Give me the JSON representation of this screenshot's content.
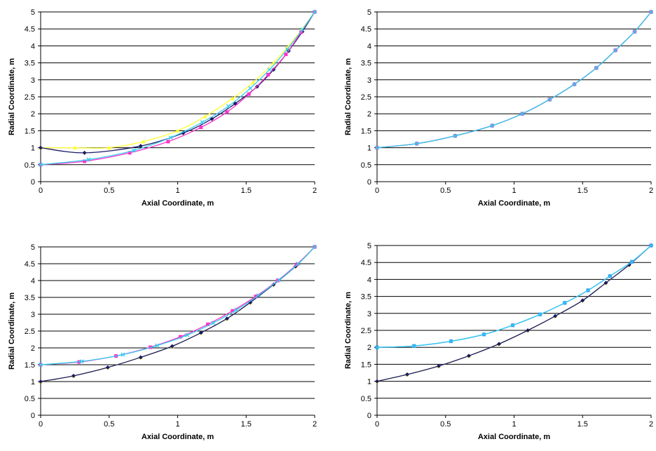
{
  "chart_data": [
    {
      "type": "scatter",
      "xlabel": "Axial Coordinate, m",
      "ylabel": "Radial Coordinate, m",
      "xlim": [
        0,
        2
      ],
      "ylim": [
        0,
        5
      ],
      "xticks": [
        "0",
        "0.5",
        "1",
        "1.5",
        "2"
      ],
      "yticks": [
        "0",
        "0.5",
        "1",
        "1.5",
        "2",
        "2.5",
        "3",
        "3.5",
        "4",
        "4.5",
        "5"
      ],
      "grid": "horizontal",
      "series": [
        {
          "color": "#ffff33",
          "marker": "triangle",
          "x": [
            0,
            0.25,
            0.5,
            0.75,
            1.0,
            1.2,
            1.4,
            1.55,
            1.7,
            1.8,
            1.9,
            2.0
          ],
          "y": [
            1.0,
            1.0,
            1.0,
            1.18,
            1.5,
            1.92,
            2.45,
            2.92,
            3.5,
            3.95,
            4.45,
            5.0
          ]
        },
        {
          "color": "#1a1a66",
          "marker": "diamond",
          "x": [
            0,
            0.32,
            0.73,
            1.04,
            1.25,
            1.42,
            1.58,
            1.7,
            1.81,
            1.91,
            2.0
          ],
          "y": [
            1.0,
            0.85,
            1.05,
            1.43,
            1.85,
            2.3,
            2.8,
            3.3,
            3.85,
            4.42,
            5.0
          ]
        },
        {
          "color": "#ff33cc",
          "marker": "square",
          "x": [
            0,
            0.32,
            0.65,
            0.93,
            1.17,
            1.36,
            1.52,
            1.66,
            1.79,
            1.9,
            2.0
          ],
          "y": [
            0.5,
            0.6,
            0.85,
            1.18,
            1.6,
            2.05,
            2.58,
            3.15,
            3.75,
            4.4,
            5.0
          ]
        },
        {
          "color": "#33ccee",
          "marker": "x",
          "x": [
            0,
            0.35,
            0.68,
            0.95,
            1.18,
            1.37,
            1.53,
            1.67,
            1.8,
            1.91,
            2.0
          ],
          "y": [
            0.5,
            0.65,
            0.92,
            1.3,
            1.75,
            2.22,
            2.75,
            3.3,
            3.9,
            4.48,
            5.0
          ]
        }
      ]
    },
    {
      "type": "scatter",
      "xlabel": "Axial Coordinate, m",
      "ylabel": "Radial Coordinate, m",
      "xlim": [
        0,
        2
      ],
      "ylim": [
        0,
        5
      ],
      "xticks": [
        "0",
        "0.5",
        "1",
        "1.5",
        "2"
      ],
      "yticks": [
        "0",
        "0.5",
        "1",
        "1.5",
        "2",
        "2.5",
        "3",
        "3.5",
        "4",
        "4.5",
        "5"
      ],
      "grid": "horizontal",
      "series": [
        {
          "color": "#1a1a66",
          "marker": "diamond",
          "x": [
            0,
            0.29,
            0.57,
            0.84,
            1.06,
            1.26,
            1.44,
            1.6,
            1.74,
            1.88,
            2.0
          ],
          "y": [
            1.0,
            1.12,
            1.35,
            1.65,
            2.0,
            2.42,
            2.87,
            3.35,
            3.87,
            4.42,
            5.0
          ]
        },
        {
          "color": "#ff33cc",
          "marker": "square",
          "x": [
            0,
            0.29,
            0.57,
            0.84,
            1.06,
            1.26,
            1.44,
            1.6,
            1.74,
            1.88,
            2.0
          ],
          "y": [
            1.0,
            1.12,
            1.35,
            1.65,
            2.0,
            2.42,
            2.87,
            3.35,
            3.87,
            4.42,
            5.0
          ]
        },
        {
          "color": "#33ccee",
          "marker": "x",
          "x": [
            0,
            0.29,
            0.57,
            0.84,
            1.06,
            1.26,
            1.44,
            1.6,
            1.74,
            1.88,
            2.0
          ],
          "y": [
            1.0,
            1.12,
            1.35,
            1.65,
            2.0,
            2.42,
            2.87,
            3.35,
            3.87,
            4.42,
            5.0
          ]
        }
      ]
    },
    {
      "type": "scatter",
      "xlabel": "Axial Coordinate, m",
      "ylabel": "Radial Coordinate, m",
      "xlim": [
        0,
        2
      ],
      "ylim": [
        0,
        5
      ],
      "xticks": [
        "0",
        "0.5",
        "1",
        "1.5",
        "2"
      ],
      "yticks": [
        "0",
        "0.5",
        "1",
        "1.5",
        "2",
        "2.5",
        "3",
        "3.5",
        "4",
        "4.5",
        "5"
      ],
      "grid": "horizontal",
      "series": [
        {
          "color": "#ffff33",
          "marker": "triangle",
          "x": [
            0,
            0.24,
            0.49,
            0.73,
            0.96,
            1.17,
            1.36,
            1.53,
            1.7,
            1.86,
            2.0
          ],
          "y": [
            1.0,
            1.17,
            1.42,
            1.72,
            2.05,
            2.45,
            2.87,
            3.35,
            3.88,
            4.42,
            5.0
          ]
        },
        {
          "color": "#1a1a66",
          "marker": "diamond",
          "x": [
            0,
            0.24,
            0.49,
            0.73,
            0.96,
            1.17,
            1.36,
            1.53,
            1.7,
            1.86,
            2.0
          ],
          "y": [
            1.0,
            1.17,
            1.42,
            1.72,
            2.05,
            2.45,
            2.87,
            3.35,
            3.88,
            4.42,
            5.0
          ]
        },
        {
          "color": "#ff33cc",
          "marker": "square",
          "x": [
            0,
            0.28,
            0.55,
            0.8,
            1.02,
            1.22,
            1.4,
            1.57,
            1.73,
            1.87,
            2.0
          ],
          "y": [
            1.5,
            1.58,
            1.76,
            2.02,
            2.33,
            2.7,
            3.1,
            3.53,
            4.0,
            4.48,
            5.0
          ]
        },
        {
          "color": "#33ccee",
          "marker": "x",
          "x": [
            0,
            0.3,
            0.6,
            0.85,
            1.07,
            1.26,
            1.43,
            1.59,
            1.74,
            1.88,
            2.0
          ],
          "y": [
            1.5,
            1.6,
            1.8,
            2.07,
            2.38,
            2.74,
            3.13,
            3.56,
            4.02,
            4.5,
            5.0
          ]
        }
      ]
    },
    {
      "type": "scatter",
      "xlabel": "Axial Coordinate, m",
      "ylabel": "Radial Coordinate, m",
      "xlim": [
        0,
        2
      ],
      "ylim": [
        0,
        5
      ],
      "xticks": [
        "0",
        "0.5",
        "1",
        "1.5",
        "2"
      ],
      "yticks": [
        "0",
        "0.5",
        "1",
        "1.5",
        "2",
        "2.5",
        "3",
        "3.5",
        "4",
        "4.5",
        "5"
      ],
      "grid": "horizontal",
      "series": [
        {
          "color": "#ffff33",
          "marker": "triangle",
          "x": [
            0,
            0.22,
            0.45,
            0.67,
            0.89,
            1.1,
            1.3,
            1.5,
            1.67,
            1.84,
            2.0
          ],
          "y": [
            1.0,
            1.2,
            1.45,
            1.75,
            2.1,
            2.5,
            2.92,
            3.38,
            3.9,
            4.43,
            5.0
          ]
        },
        {
          "color": "#1a1a66",
          "marker": "diamond",
          "x": [
            0,
            0.22,
            0.45,
            0.67,
            0.89,
            1.1,
            1.3,
            1.5,
            1.67,
            1.84,
            2.0
          ],
          "y": [
            1.0,
            1.2,
            1.45,
            1.75,
            2.1,
            2.5,
            2.92,
            3.38,
            3.9,
            4.43,
            5.0
          ]
        },
        {
          "color": "#3366ff",
          "marker": "square",
          "x": [
            0,
            0.27,
            0.54,
            0.78,
            0.99,
            1.19,
            1.37,
            1.54,
            1.7,
            1.86,
            2.0
          ],
          "y": [
            2.0,
            2.04,
            2.18,
            2.38,
            2.65,
            2.97,
            3.31,
            3.68,
            4.1,
            4.52,
            5.0
          ]
        },
        {
          "color": "#33ccee",
          "marker": "x",
          "x": [
            0,
            0.27,
            0.54,
            0.78,
            0.99,
            1.19,
            1.37,
            1.54,
            1.7,
            1.86,
            2.0
          ],
          "y": [
            2.0,
            2.04,
            2.18,
            2.38,
            2.65,
            2.97,
            3.31,
            3.68,
            4.1,
            4.52,
            5.0
          ]
        }
      ]
    }
  ]
}
